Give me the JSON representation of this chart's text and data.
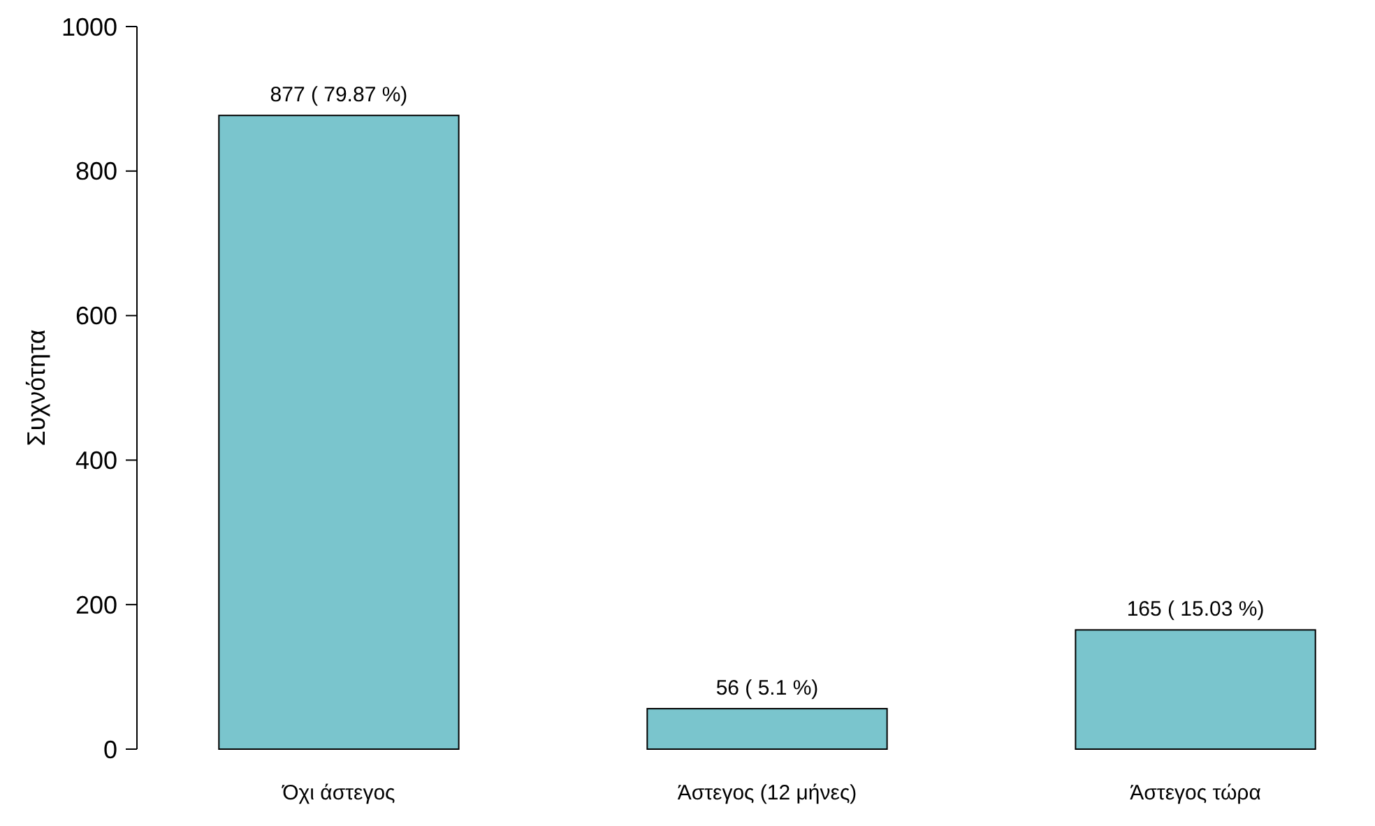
{
  "chart_data": {
    "type": "bar",
    "ylabel": "Συχνότητα",
    "categories": [
      "Όχι άστεγος",
      "Άστεγος (12 μήνες)",
      "Άστεγος τώρα"
    ],
    "values": [
      877,
      56,
      165
    ],
    "color": "#7ac5cd",
    "value_labels": [
      "877 ( 79.87 %)",
      "56 ( 5.1 %)",
      "165 ( 15.03 %)"
    ],
    "ylim": [
      0,
      1000
    ],
    "yticks": [
      0,
      200,
      400,
      600,
      800,
      1000
    ]
  }
}
